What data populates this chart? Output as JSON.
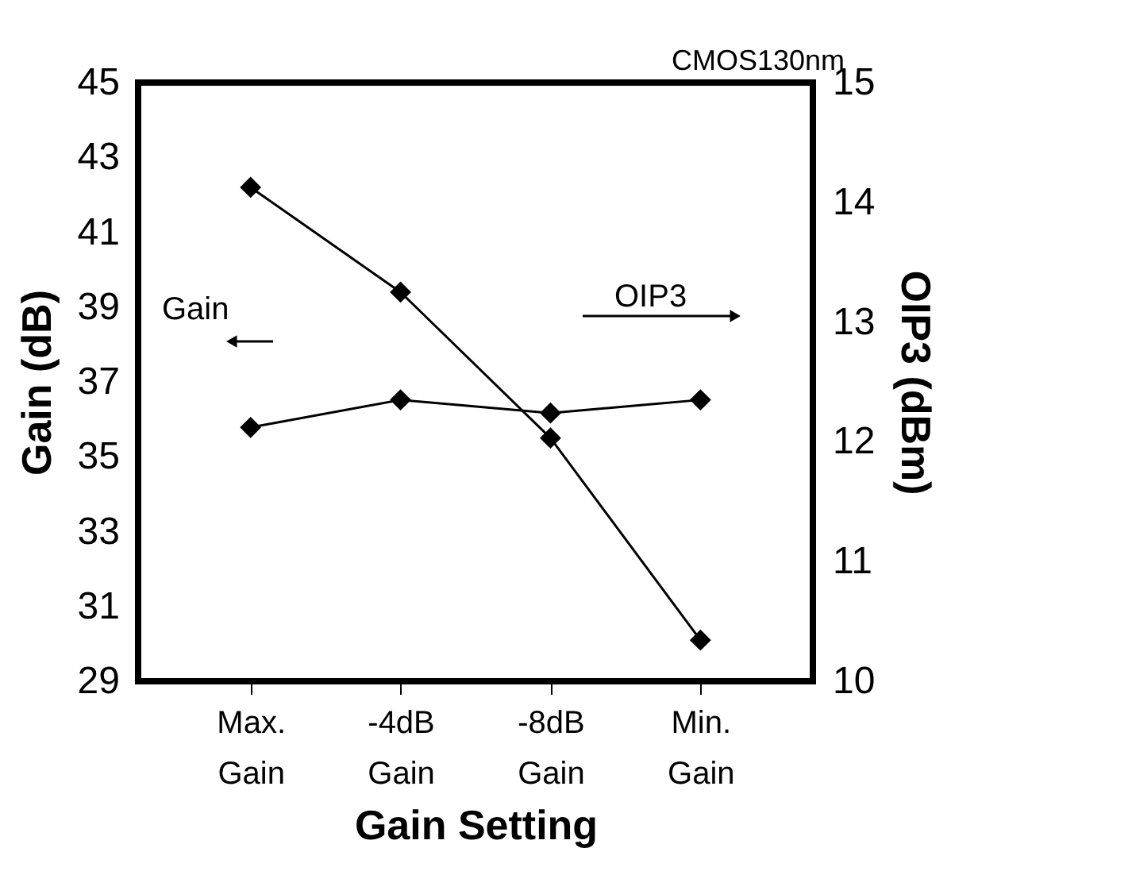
{
  "chart_data": {
    "type": "line",
    "xlabel": "Gain Setting",
    "ylabel": "Gain (dB)",
    "y2label": "OIP3 (dBm)",
    "categories": [
      "Max. Gain",
      "-4dB Gain",
      "-8dB Gain",
      "Min. Gain"
    ],
    "series": [
      {
        "color": "#000000",
        "values": [
          42.2,
          39.4,
          35.5,
          30.1
        ]
      },
      {
        "color": "#000000",
        "axis": "y2",
        "values": [
          12.12,
          12.35,
          12.24,
          12.35
        ]
      }
    ],
    "ylim": [
      29,
      45
    ],
    "yticks": [
      29,
      31,
      33,
      35,
      37,
      39,
      41,
      43,
      45
    ],
    "y2lim": [
      10,
      15
    ],
    "y2ticks": [
      10,
      11,
      12,
      13,
      14,
      15
    ],
    "marker": "diamond",
    "line_style": "solid",
    "grid": false,
    "annotations": [
      "CMOS130nm",
      "Gain",
      "OIP3"
    ]
  }
}
